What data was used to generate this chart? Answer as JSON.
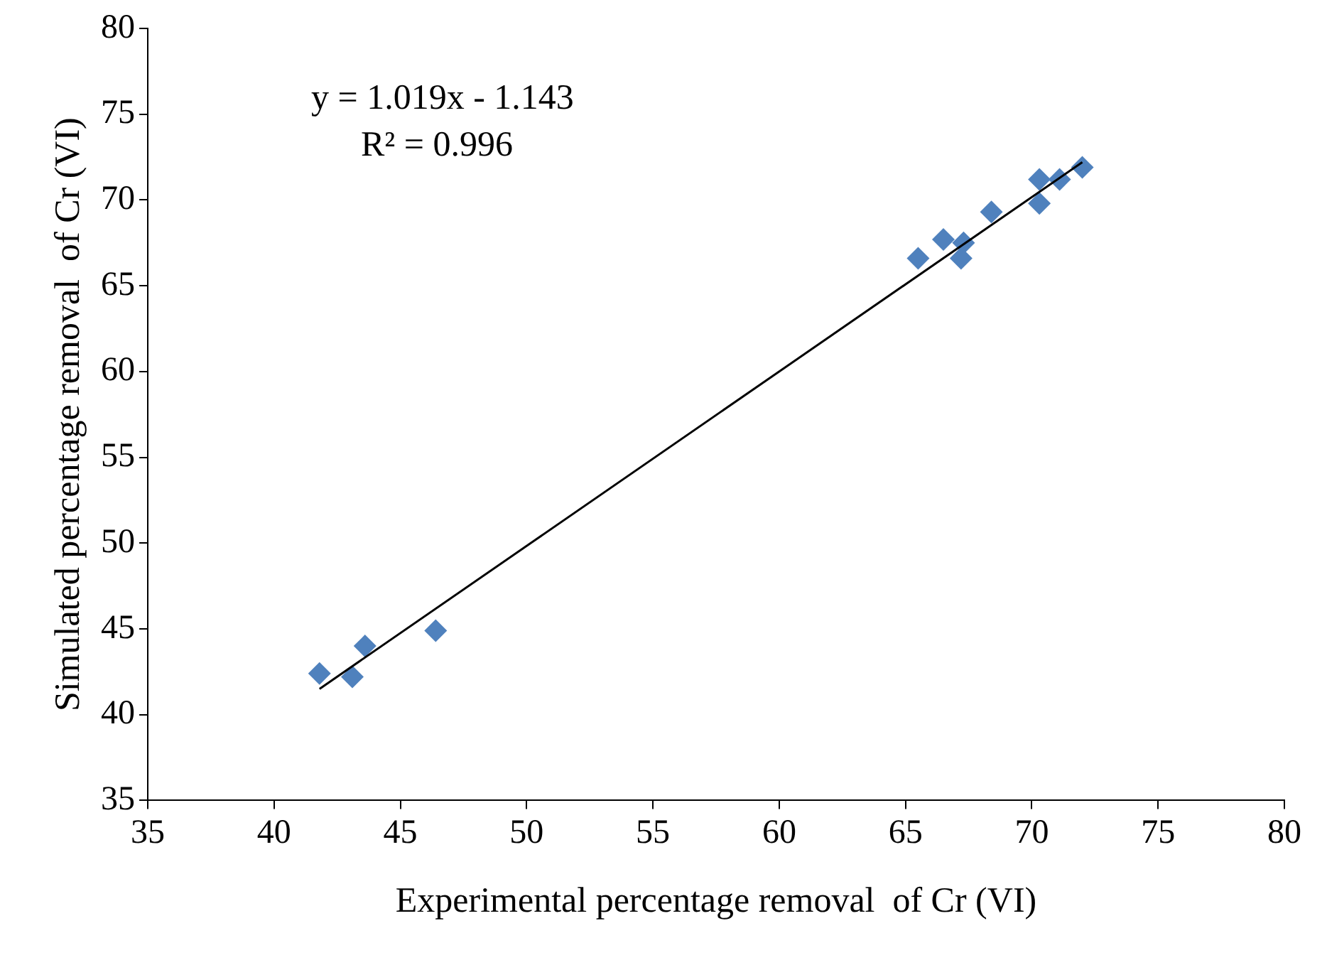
{
  "chart_data": {
    "type": "scatter",
    "xlabel": "Experimental percentage removal  of Cr (VI)",
    "ylabel": "Simulated percentage removal  of Cr (VI)",
    "annotations": [
      "y = 1.019x - 1.143",
      "R² = 0.996"
    ],
    "xlim": [
      35,
      80
    ],
    "xticks": [
      35,
      40,
      45,
      50,
      55,
      60,
      65,
      70,
      75,
      80
    ],
    "ylim": [
      35,
      80
    ],
    "yticks": [
      35,
      40,
      45,
      50,
      55,
      60,
      65,
      70,
      75,
      80
    ],
    "grid": false,
    "legend": false,
    "marker": "diamond",
    "series": [
      {
        "color": "#4f81bd",
        "x": [
          41.8,
          43.1,
          43.6,
          46.4,
          65.5,
          66.5,
          67.3,
          67.2,
          68.4,
          70.3,
          70.3,
          71.1,
          72.0
        ],
        "values": [
          42.4,
          42.2,
          44.0,
          44.9,
          66.6,
          67.7,
          67.5,
          66.6,
          69.3,
          71.2,
          69.8,
          71.2,
          71.9
        ]
      },
      {
        "type": "line",
        "color": "#000000",
        "marker": "none",
        "x": [
          41.8,
          72.0
        ],
        "values": [
          41.5,
          72.2
        ]
      }
    ]
  }
}
